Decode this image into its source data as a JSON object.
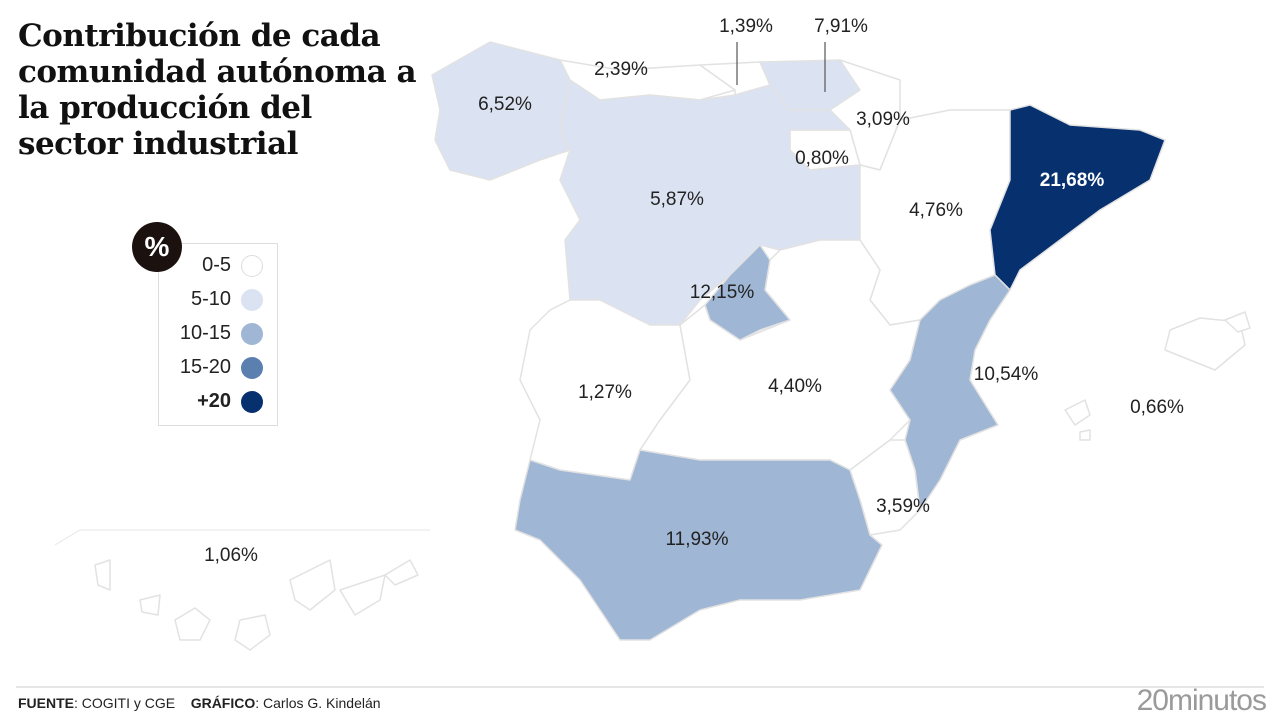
{
  "title": "Contribución de cada comunidad autónoma a la producción del sector industrial",
  "legend": {
    "badge": "%",
    "items": [
      {
        "label": "0-5",
        "color": "#ffffff"
      },
      {
        "label": "5-10",
        "color": "#dbe2f1"
      },
      {
        "label": "10-15",
        "color": "#9fb6d4"
      },
      {
        "label": "15-20",
        "color": "#5b80b0"
      },
      {
        "label": "+20",
        "color": "#06306e"
      }
    ]
  },
  "regions": [
    {
      "name": "galicia",
      "value": "6,52%",
      "bin": 1
    },
    {
      "name": "asturias",
      "value": "2,39%",
      "bin": 0
    },
    {
      "name": "cantabria",
      "value": "1,39%",
      "bin": 0
    },
    {
      "name": "pais-vasco",
      "value": "7,91%",
      "bin": 1
    },
    {
      "name": "navarra",
      "value": "3,09%",
      "bin": 0
    },
    {
      "name": "la-rioja",
      "value": "0,80%",
      "bin": 0
    },
    {
      "name": "castilla-y-leon",
      "value": "5,87%",
      "bin": 1
    },
    {
      "name": "cataluna",
      "value": "21,68%",
      "bin": 4
    },
    {
      "name": "aragon",
      "value": "4,76%",
      "bin": 0
    },
    {
      "name": "madrid",
      "value": "12,15%",
      "bin": 2
    },
    {
      "name": "extremadura",
      "value": "1,27%",
      "bin": 0
    },
    {
      "name": "castilla-la-mancha",
      "value": "4,40%",
      "bin": 0
    },
    {
      "name": "valencia",
      "value": "10,54%",
      "bin": 2
    },
    {
      "name": "baleares",
      "value": "0,66%",
      "bin": 0
    },
    {
      "name": "murcia",
      "value": "3,59%",
      "bin": 0
    },
    {
      "name": "andalucia",
      "value": "11,93%",
      "bin": 2
    },
    {
      "name": "canarias",
      "value": "1,06%",
      "bin": 0
    }
  ],
  "footer": {
    "source_label": "FUENTE",
    "source": ": COGITI y CGE",
    "graphic_label": "GRÁFICO",
    "graphic": ": Carlos G. Kindelán",
    "brand": "20minutos"
  }
}
